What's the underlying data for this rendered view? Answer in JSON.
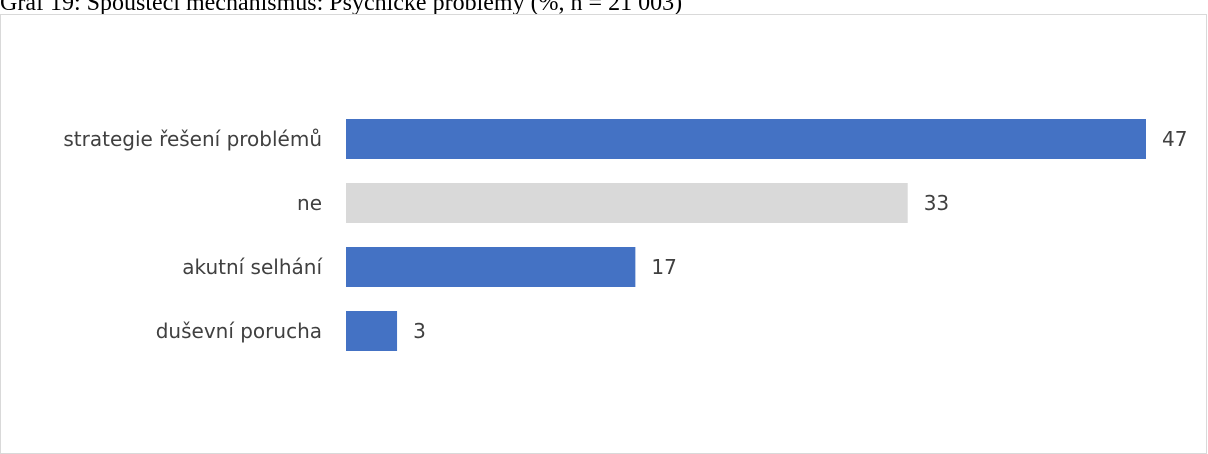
{
  "caption": "Graf 19: Spouštěcí mechanismus: Psychické problémy (%, n = 21 003)",
  "chart_data": {
    "type": "bar",
    "orientation": "horizontal",
    "categories": [
      "strategie řešení problémů",
      "ne",
      "akutní selhání",
      "duševní porucha"
    ],
    "values": [
      47,
      33,
      17,
      3
    ],
    "colors": [
      "#4472c4",
      "#d9d9d9",
      "#4472c4",
      "#4472c4"
    ],
    "data_labels": [
      "47",
      "33",
      "17",
      "3"
    ],
    "xlim": [
      0,
      47
    ],
    "grid": false,
    "legend": "none"
  }
}
